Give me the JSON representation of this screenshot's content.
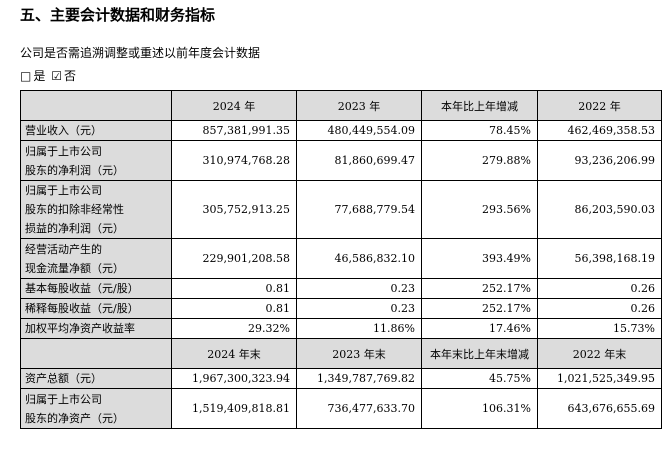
{
  "title": "五、主要会计数据和财务指标",
  "subtitle": "公司是否需追溯调整或重述以前年度会计数据",
  "choices": {
    "yes_box": "□",
    "yes_label": "是",
    "no_box": "☑",
    "no_label": "否"
  },
  "table": {
    "header1": [
      "",
      "2024 年",
      "2023 年",
      "本年比上年增减",
      "2022 年"
    ],
    "rows1": [
      {
        "label": "营业收入（元）",
        "v2024": "857,381,991.35",
        "v2023": "480,449,554.09",
        "change": "78.45%",
        "v2022": "462,469,358.53"
      },
      {
        "label": "归属于上市公司\n股东的净利润（元）",
        "v2024": "310,974,768.28",
        "v2023": "81,860,699.47",
        "change": "279.88%",
        "v2022": "93,236,206.99"
      },
      {
        "label": "归属于上市公司\n股东的扣除非经常性\n损益的净利润（元）",
        "v2024": "305,752,913.25",
        "v2023": "77,688,779.54",
        "change": "293.56%",
        "v2022": "86,203,590.03"
      },
      {
        "label": "经营活动产生的\n现金流量净额（元）",
        "v2024": "229,901,208.58",
        "v2023": "46,586,832.10",
        "change": "393.49%",
        "v2022": "56,398,168.19"
      },
      {
        "label": "基本每股收益（元/股）",
        "v2024": "0.81",
        "v2023": "0.23",
        "change": "252.17%",
        "v2022": "0.26"
      },
      {
        "label": "稀释每股收益（元/股）",
        "v2024": "0.81",
        "v2023": "0.23",
        "change": "252.17%",
        "v2022": "0.26"
      },
      {
        "label": "加权平均净资产收益率",
        "v2024": "29.32%",
        "v2023": "11.86%",
        "change": "17.46%",
        "v2022": "15.73%"
      }
    ],
    "header2": [
      "",
      "2024 年末",
      "2023 年末",
      "本年末比上年末增减",
      "2022 年末"
    ],
    "rows2": [
      {
        "label": "资产总额（元）",
        "v2024": "1,967,300,323.94",
        "v2023": "1,349,787,769.82",
        "change": "45.75%",
        "v2022": "1,021,525,349.95"
      },
      {
        "label": "归属于上市公司\n股东的净资产（元）",
        "v2024": "1,519,409,818.81",
        "v2023": "736,477,633.70",
        "change": "106.31%",
        "v2022": "643,676,655.69"
      }
    ]
  }
}
